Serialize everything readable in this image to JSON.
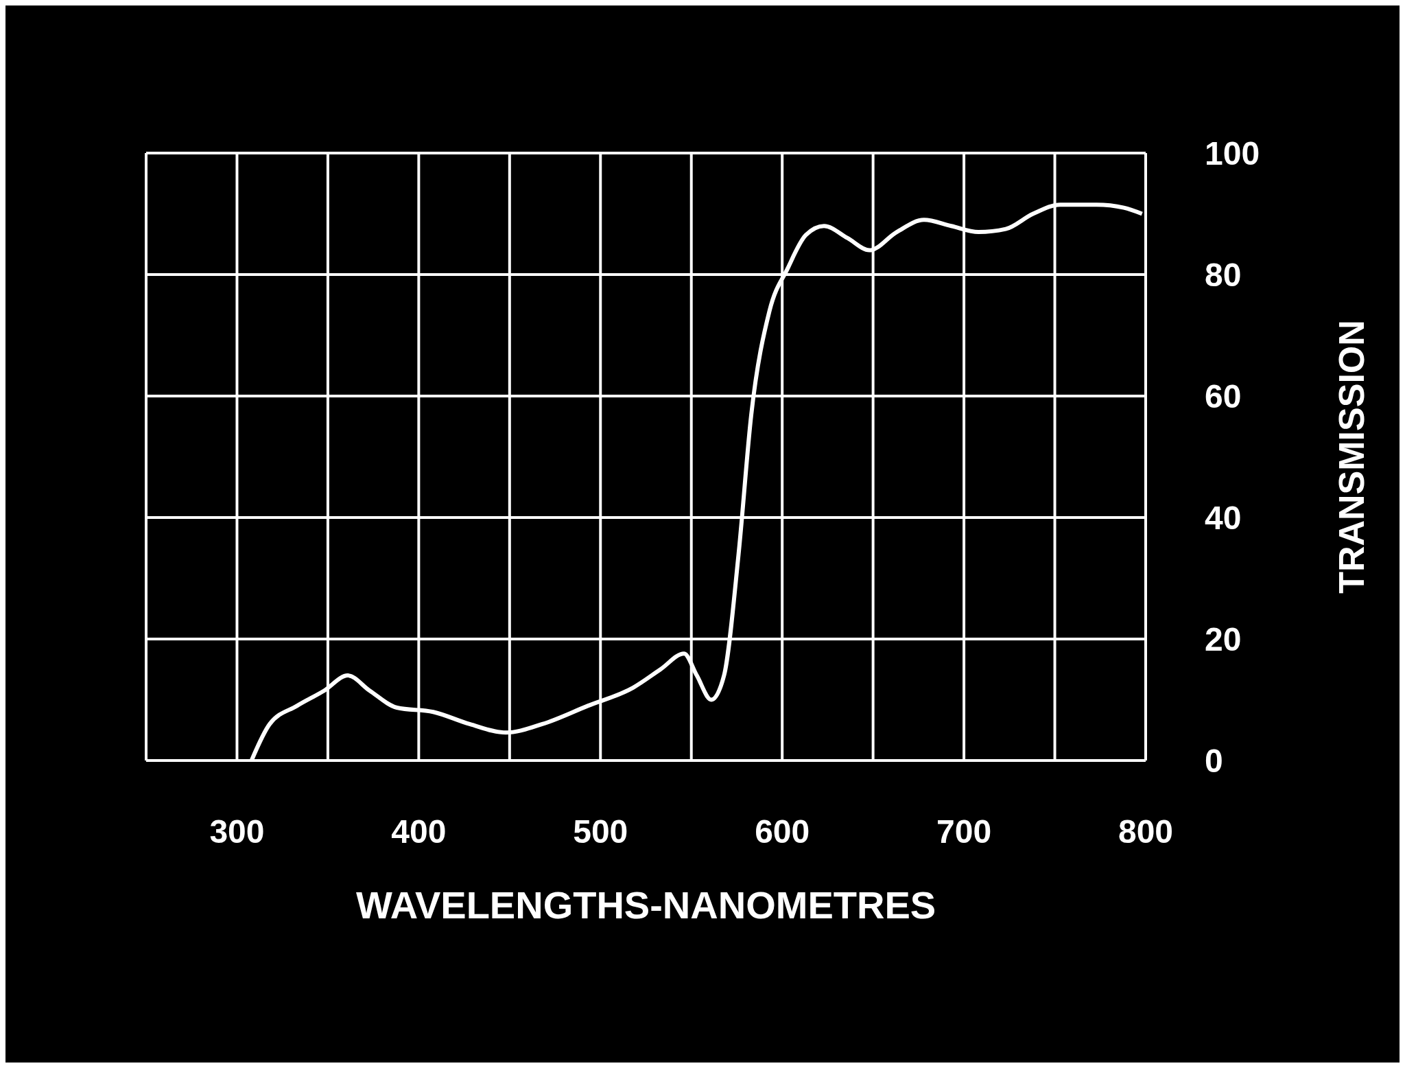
{
  "chart_data": {
    "type": "line",
    "xlabel": "WAVELENGTHS-NANOMETRES",
    "ylabel": "TRANSMISSION",
    "series": [
      {
        "color": "#ffffff",
        "x": [
          308,
          318,
          333,
          348,
          361,
          373,
          388,
          408,
          428,
          448,
          468,
          493,
          518,
          533,
          546,
          553,
          561,
          568,
          576,
          583,
          593,
          603,
          613,
          623,
          636,
          648,
          663,
          678,
          693,
          708,
          723,
          738,
          753,
          773,
          788,
          798
        ],
        "values": [
          0,
          6,
          9,
          11.5,
          14,
          11.5,
          8.7,
          8,
          6,
          4.6,
          6,
          9,
          12,
          15,
          17.6,
          14,
          10,
          14,
          34,
          57,
          74,
          81,
          86.5,
          88,
          86,
          84,
          87,
          89,
          88,
          87,
          87.5,
          90,
          91.5,
          91.5,
          91,
          90
        ]
      }
    ],
    "xlim": [
      250,
      800
    ],
    "xticks": [
      {
        "value": 250,
        "label": null
      },
      300,
      {
        "value": 350,
        "label": null
      },
      400,
      {
        "value": 450,
        "label": null
      },
      500,
      {
        "value": 550,
        "label": null
      },
      600,
      {
        "value": 650,
        "label": null
      },
      700,
      {
        "value": 750,
        "label": null
      },
      800
    ],
    "ylim": [
      0,
      100
    ],
    "yticks": [
      0,
      20,
      40,
      60,
      80,
      100
    ],
    "grid": true,
    "marker": "none",
    "line_style": "solid"
  }
}
